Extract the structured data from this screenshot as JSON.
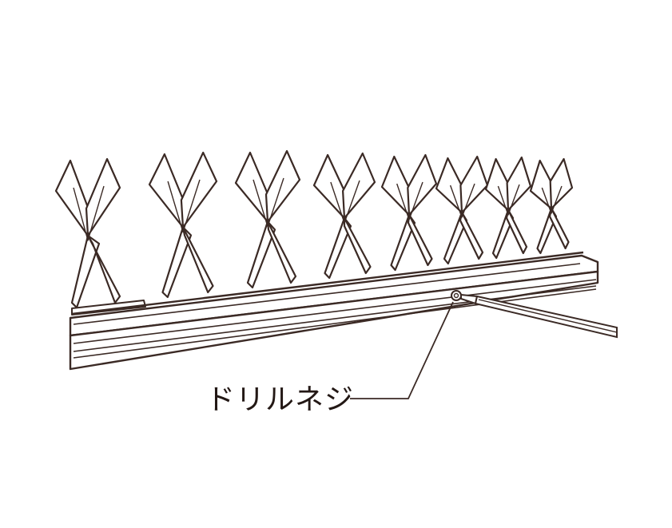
{
  "figure": {
    "callout_label": "ドリルネジ",
    "line_color": "#3b2a25",
    "background": "#ffffff"
  }
}
